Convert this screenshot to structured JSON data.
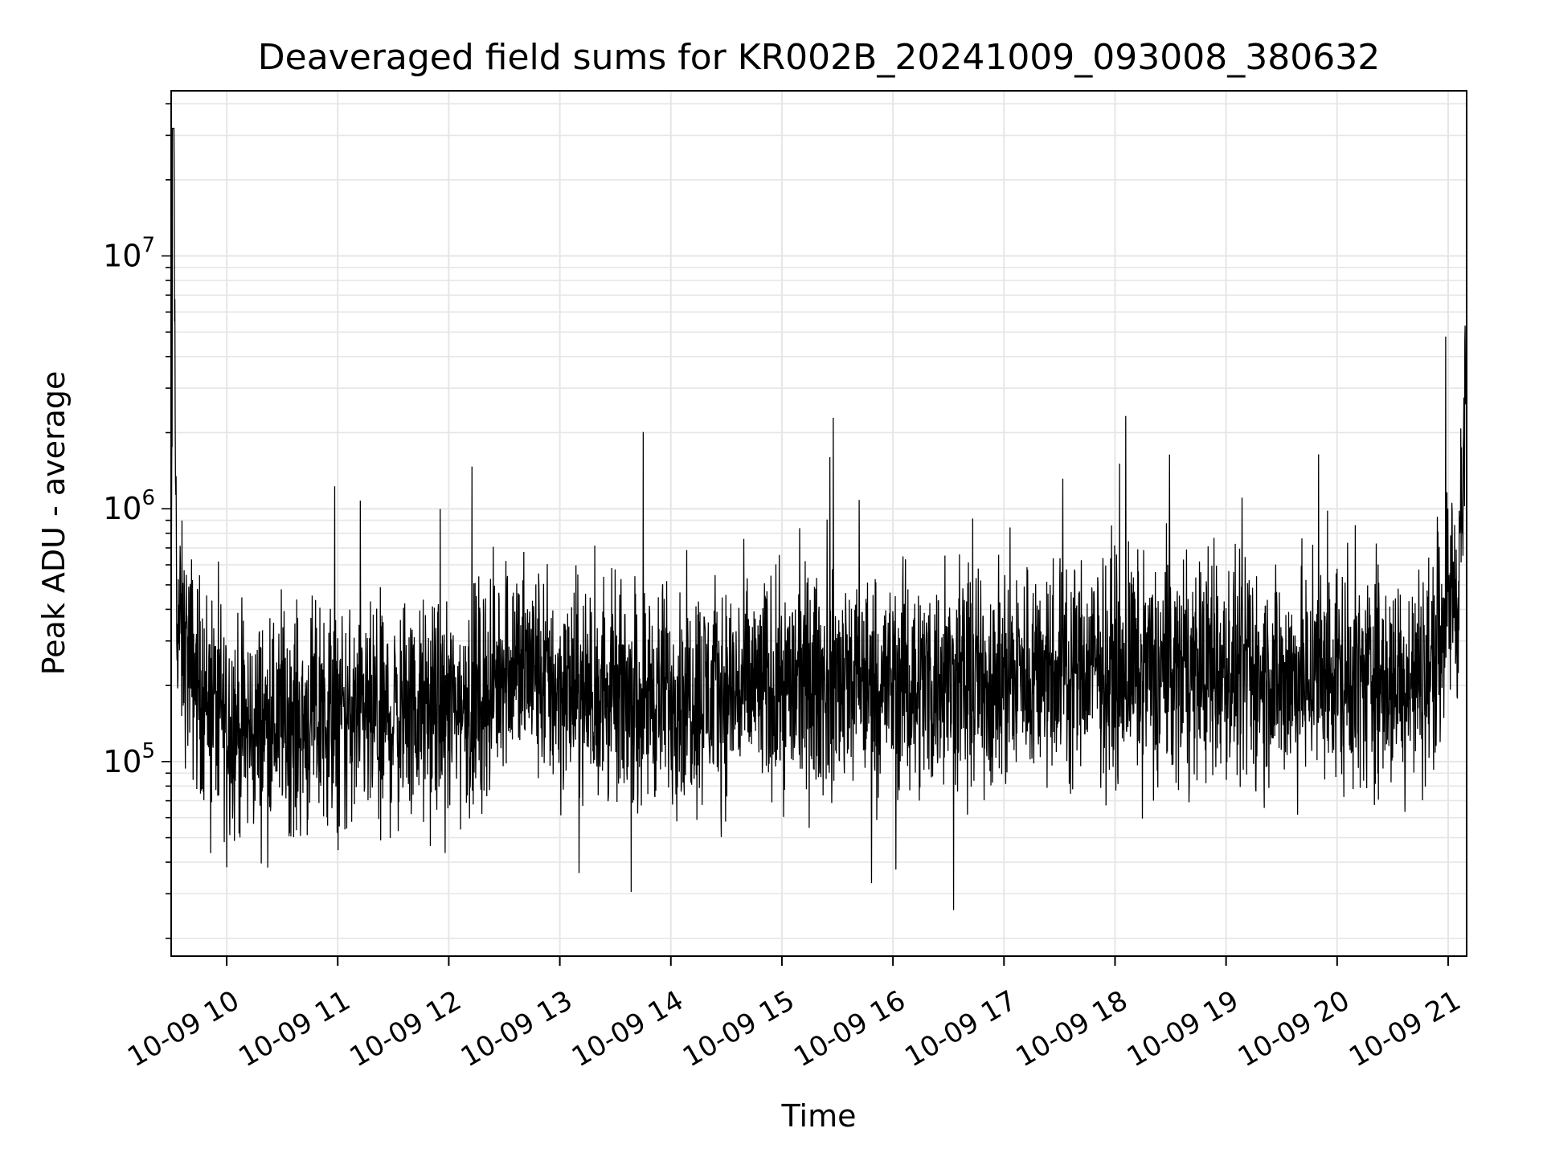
{
  "chart_data": {
    "type": "line",
    "title": "Deaveraged field sums for KR002B_20241009_093008_380632",
    "xlabel": "Time",
    "ylabel": "Peak ADU - average",
    "y_scale": "log",
    "ylim": [
      17000,
      45000000
    ],
    "xlim": [
      "2024-10-09 09:30",
      "2024-10-09 21:10"
    ],
    "grid": true,
    "line_color": "#000000",
    "grid_color": "#e6e6e6",
    "x_ticks": [
      {
        "value": "2024-10-09 10:00",
        "label": "10-09 10"
      },
      {
        "value": "2024-10-09 11:00",
        "label": "10-09 11"
      },
      {
        "value": "2024-10-09 12:00",
        "label": "10-09 12"
      },
      {
        "value": "2024-10-09 13:00",
        "label": "10-09 13"
      },
      {
        "value": "2024-10-09 14:00",
        "label": "10-09 14"
      },
      {
        "value": "2024-10-09 15:00",
        "label": "10-09 15"
      },
      {
        "value": "2024-10-09 16:00",
        "label": "10-09 16"
      },
      {
        "value": "2024-10-09 17:00",
        "label": "10-09 17"
      },
      {
        "value": "2024-10-09 18:00",
        "label": "10-09 18"
      },
      {
        "value": "2024-10-09 19:00",
        "label": "10-09 19"
      },
      {
        "value": "2024-10-09 20:00",
        "label": "10-09 20"
      },
      {
        "value": "2024-10-09 21:00",
        "label": "10-09 21"
      }
    ],
    "y_ticks": [
      {
        "value": 100000,
        "base": "10",
        "exp": "5"
      },
      {
        "value": 1000000,
        "base": "10",
        "exp": "6"
      },
      {
        "value": 10000000,
        "base": "10",
        "exp": "7"
      }
    ],
    "series": [
      {
        "x": [
          "2024-10-09 09:30",
          "2024-10-09 09:31",
          "2024-10-09 09:33",
          "2024-10-09 09:36",
          "2024-10-09 09:40",
          "2024-10-09 09:45",
          "2024-10-09 09:50",
          "2024-10-09 10:00",
          "2024-10-09 10:10",
          "2024-10-09 10:20",
          "2024-10-09 10:30",
          "2024-10-09 10:40",
          "2024-10-09 10:50",
          "2024-10-09 11:00",
          "2024-10-09 11:15",
          "2024-10-09 11:30",
          "2024-10-09 11:45",
          "2024-10-09 12:00",
          "2024-10-09 12:15",
          "2024-10-09 12:25",
          "2024-10-09 12:30",
          "2024-10-09 12:45",
          "2024-10-09 13:00",
          "2024-10-09 13:30",
          "2024-10-09 14:00",
          "2024-10-09 14:30",
          "2024-10-09 15:00",
          "2024-10-09 15:30",
          "2024-10-09 16:00",
          "2024-10-09 16:30",
          "2024-10-09 17:00",
          "2024-10-09 17:20",
          "2024-10-09 17:40",
          "2024-10-09 18:00",
          "2024-10-09 18:30",
          "2024-10-09 19:00",
          "2024-10-09 19:30",
          "2024-10-09 20:00",
          "2024-10-09 20:20",
          "2024-10-09 20:40",
          "2024-10-09 20:50",
          "2024-10-09 21:00",
          "2024-10-09 21:05",
          "2024-10-09 21:10"
        ],
        "y": [
          250000,
          32000000,
          400000,
          300000,
          250000,
          200000,
          180000,
          150000,
          130000,
          140000,
          150000,
          140000,
          150000,
          150000,
          140000,
          150000,
          155000,
          160000,
          175000,
          200000,
          260000,
          230000,
          190000,
          180000,
          185000,
          190000,
          200000,
          205000,
          205000,
          205000,
          210000,
          240000,
          240000,
          235000,
          230000,
          220000,
          210000,
          215000,
          210000,
          205000,
          230000,
          480000,
          450000,
          2600000
        ]
      }
    ]
  }
}
